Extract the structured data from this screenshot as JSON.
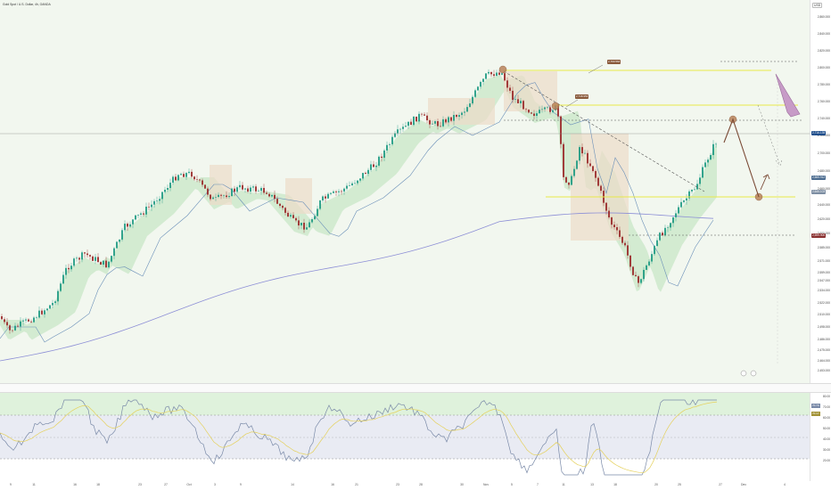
{
  "header": {
    "symbol": "Gold Spot / U.S. Dollar, 4h, OANDA",
    "currency": "USD"
  },
  "price_axis": {
    "ticks": [
      "2,860.000",
      "2,840.000",
      "2,820.000",
      "2,800.000",
      "2,780.000",
      "2,760.000",
      "2,740.000",
      "2,720.000",
      "2,700.000",
      "2,680.000",
      "2,660.000",
      "2,640.000",
      "2,620.000",
      "2,600.000",
      "2,585.000",
      "2,571.000",
      "2,559.000",
      "2,547.000",
      "2,534.000",
      "2,522.000",
      "2,510.000",
      "2,498.000",
      "2,486.000",
      "2,475.000",
      "2,464.000",
      "2,453.000"
    ],
    "current_price": "2,716.135",
    "tag_a": "2,665.912",
    "tag_b": "2,645.103",
    "tag_c": "2,599.900"
  },
  "annotations": {
    "upper_level": "2,790.564",
    "mid_level": "2,748.953"
  },
  "rsi_axis": {
    "ticks": [
      "80.00",
      "70.00",
      "60.00",
      "50.00",
      "40.00",
      "30.00",
      "20.00"
    ],
    "rsi_value": "70.17",
    "rsi_ma": "70.79"
  },
  "time_axis": {
    "labels": [
      "9",
      "11",
      "16",
      "18",
      "23",
      "27",
      "Oct",
      "3",
      "9",
      "14",
      "16",
      "21",
      "23",
      "28",
      "30",
      "Nov",
      "5",
      "7",
      "11",
      "13",
      "18",
      "20",
      "25",
      "27",
      "Dec",
      "4"
    ]
  },
  "colors": {
    "bull": "#1f9b83",
    "bear": "#9a2a2a",
    "cloud_green": "#cfe9cd",
    "cloud_red": "#ecdcc9",
    "yellow_line": "#e8e84a",
    "arrow": "#7a4a35",
    "forecast_arrow": "#c79bc7",
    "rsi_line": "#7a8aa8",
    "rsi_ma": "#e5d15c"
  }
}
